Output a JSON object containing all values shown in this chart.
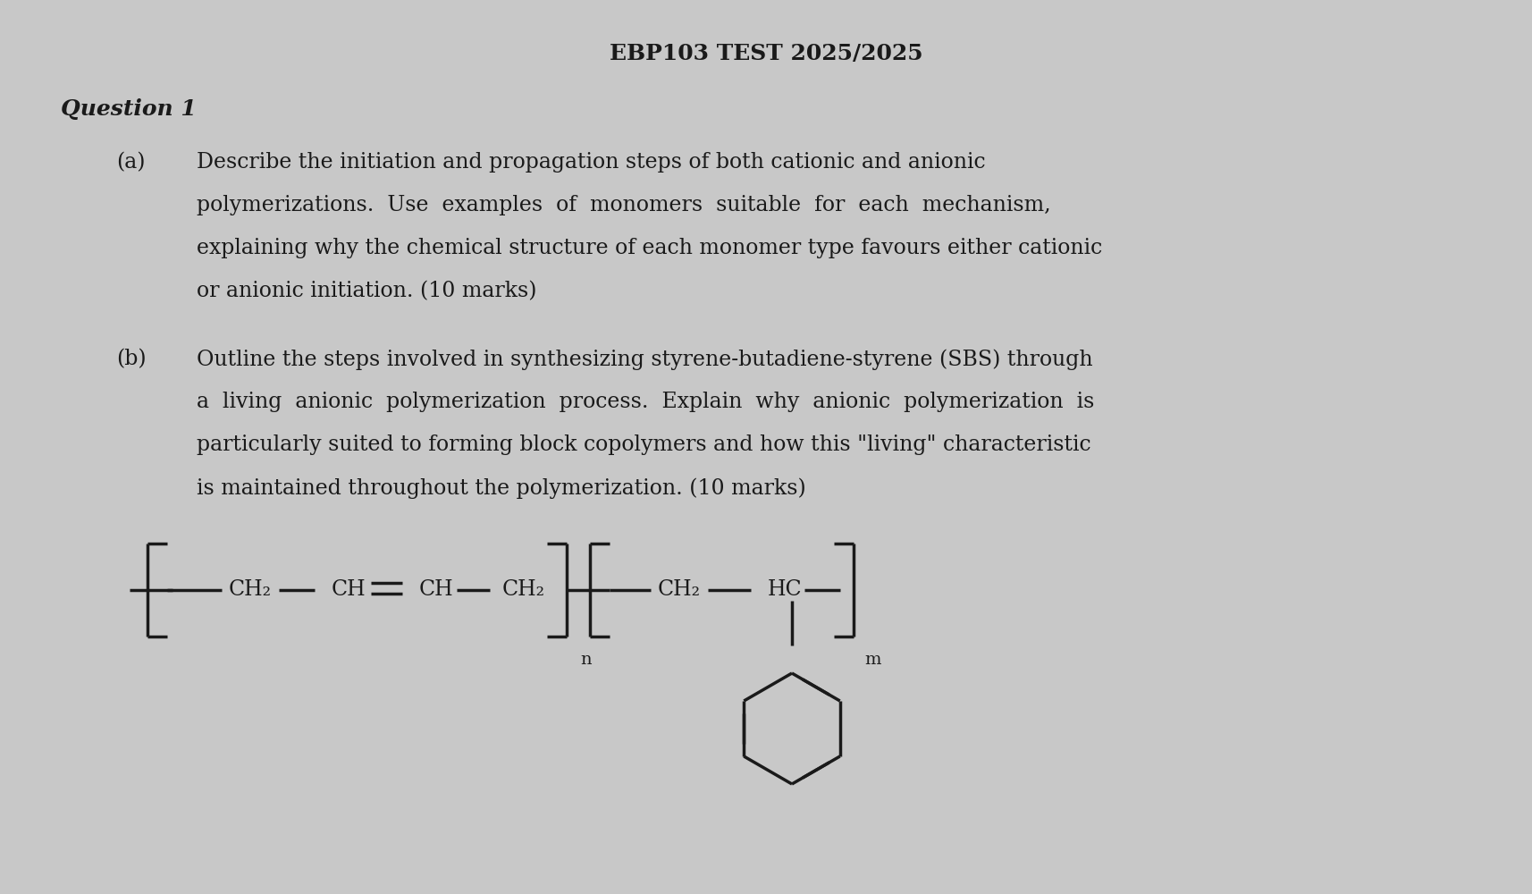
{
  "title": "EBP103 TEST 2025/2025",
  "title_fontsize": 18,
  "title_fontweight": "bold",
  "bg_color": "#c8c8c8",
  "text_color": "#1a1a1a",
  "question_label": "Question 1",
  "qa_label": "(a)",
  "qa_text_line1": "Describe the initiation and propagation steps of both cationic and anionic",
  "qa_text_line2": "polymerizations.  Use  examples  of  monomers  suitable  for  each  mechanism,",
  "qa_text_line3": "explaining why the chemical structure of each monomer type favours either cationic",
  "qa_text_line4": "or anionic initiation. (10 marks)",
  "qb_label": "(b)",
  "qb_text_line1": "Outline the steps involved in synthesizing styrene-butadiene-styrene (SBS) through",
  "qb_text_line2": "a  living  anionic  polymerization  process.  Explain  why  anionic  polymerization  is",
  "qb_text_line3": "particularly suited to forming block copolymers and how this \"living\" characteristic",
  "qb_text_line4": "is maintained throughout the polymerization. (10 marks)",
  "body_fontsize": 17,
  "label_fontsize": 17,
  "chem_fontsize": 17,
  "sub_fontsize": 14
}
